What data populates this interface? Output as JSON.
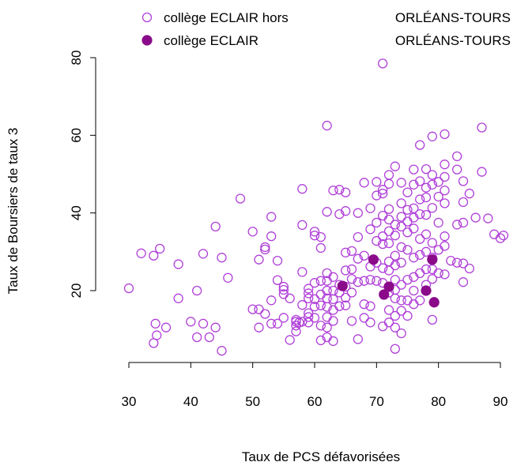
{
  "chart_data": {
    "type": "scatter",
    "title": "",
    "xlabel": "Taux de PCS défavorisées",
    "ylabel": "Taux de Boursiers de taux 3",
    "xlim": [
      28,
      92
    ],
    "ylim": [
      2,
      82
    ],
    "xticks": [
      30,
      40,
      50,
      60,
      70,
      80,
      90
    ],
    "yticks": [
      20,
      40,
      60,
      80
    ],
    "grid": false,
    "legend_position": "top",
    "legend": [
      {
        "series_index": 0,
        "label_left": "collège ECLAIR hors",
        "label_right": "ORLÉANS-TOURS"
      },
      {
        "series_index": 1,
        "label_left": "collège ECLAIR",
        "label_right": "ORLÉANS-TOURS"
      }
    ],
    "series": [
      {
        "name": "collège ECLAIR hors ORLÉANS-TOURS",
        "marker": "open-circle",
        "color": "#b040d8",
        "points": [
          [
            30,
            20.6
          ],
          [
            32,
            29.6
          ],
          [
            34,
            29
          ],
          [
            35,
            30.8
          ],
          [
            36,
            10.5
          ],
          [
            34,
            6.5
          ],
          [
            34.5,
            8.5
          ],
          [
            34.3,
            11.5
          ],
          [
            38,
            18
          ],
          [
            38,
            26.8
          ],
          [
            40,
            12
          ],
          [
            41,
            20
          ],
          [
            41,
            8
          ],
          [
            42,
            29.5
          ],
          [
            42,
            11.5
          ],
          [
            43,
            8
          ],
          [
            44,
            36.5
          ],
          [
            45,
            28.5
          ],
          [
            44,
            10.5
          ],
          [
            45,
            4.5
          ],
          [
            46,
            23.3
          ],
          [
            48,
            43.7
          ],
          [
            50,
            35.2
          ],
          [
            50,
            15.2
          ],
          [
            51,
            10.5
          ],
          [
            51,
            15.2
          ],
          [
            51,
            28
          ],
          [
            52,
            31.2
          ],
          [
            52,
            30.6
          ],
          [
            52,
            14
          ],
          [
            53,
            34
          ],
          [
            53,
            39
          ],
          [
            53,
            11.5
          ],
          [
            53,
            17.5
          ],
          [
            54,
            22.7
          ],
          [
            54,
            27.7
          ],
          [
            54,
            11.5
          ],
          [
            55,
            20.2
          ],
          [
            55,
            21
          ],
          [
            55,
            19.1
          ],
          [
            55,
            13
          ],
          [
            56,
            18
          ],
          [
            56,
            7.3
          ],
          [
            57,
            11
          ],
          [
            57,
            12
          ],
          [
            57,
            12.5
          ],
          [
            57,
            9.5
          ],
          [
            57.5,
            11.8
          ],
          [
            58,
            16.3
          ],
          [
            58,
            36.9
          ],
          [
            58,
            46.2
          ],
          [
            58,
            24.8
          ],
          [
            58,
            12
          ],
          [
            59,
            11.8
          ],
          [
            59,
            19.3
          ],
          [
            59,
            20.5
          ],
          [
            59,
            18
          ],
          [
            59,
            14.2
          ],
          [
            59,
            13.2
          ],
          [
            60,
            35.2
          ],
          [
            60,
            34.2
          ],
          [
            60,
            22
          ],
          [
            60,
            17.8
          ],
          [
            60,
            15.9
          ],
          [
            60,
            13
          ],
          [
            61,
            33.8
          ],
          [
            61,
            31
          ],
          [
            61,
            22.5
          ],
          [
            61,
            19
          ],
          [
            61,
            16.2
          ],
          [
            61,
            11
          ],
          [
            61,
            7.2
          ],
          [
            62,
            62.5
          ],
          [
            62,
            40.3
          ],
          [
            62,
            24.5
          ],
          [
            62,
            22.5
          ],
          [
            62,
            20
          ],
          [
            62,
            18
          ],
          [
            62,
            15.8
          ],
          [
            62,
            13.2
          ],
          [
            62,
            10.5
          ],
          [
            62,
            8
          ],
          [
            63,
            45.8
          ],
          [
            63,
            23.5
          ],
          [
            63,
            20
          ],
          [
            63,
            17.8
          ],
          [
            63,
            15
          ],
          [
            63,
            12.2
          ],
          [
            63,
            7
          ],
          [
            64,
            46
          ],
          [
            64,
            39.7
          ],
          [
            64,
            21.5
          ],
          [
            64,
            19.5
          ],
          [
            64,
            16
          ],
          [
            65,
            45.3
          ],
          [
            65,
            40.5
          ],
          [
            65,
            29.8
          ],
          [
            65,
            25.2
          ],
          [
            65,
            21
          ],
          [
            65,
            18.2
          ],
          [
            65,
            16.2
          ],
          [
            66,
            30.2
          ],
          [
            66,
            25.5
          ],
          [
            66,
            23
          ],
          [
            66,
            19.5
          ],
          [
            66,
            12.2
          ],
          [
            67,
            40
          ],
          [
            67,
            33.8
          ],
          [
            67,
            28.2
          ],
          [
            67,
            22.2
          ],
          [
            67,
            7.5
          ],
          [
            68,
            47.8
          ],
          [
            68,
            29
          ],
          [
            68,
            22.5
          ],
          [
            68,
            16.5
          ],
          [
            68,
            13
          ],
          [
            69,
            41.2
          ],
          [
            69,
            35.8
          ],
          [
            69,
            26.2
          ],
          [
            69,
            22.8
          ],
          [
            69,
            16
          ],
          [
            69,
            11.8
          ],
          [
            70,
            48
          ],
          [
            70,
            44.5
          ],
          [
            70,
            37.5
          ],
          [
            70,
            32.8
          ],
          [
            70,
            27.2
          ],
          [
            70,
            22.5
          ],
          [
            71,
            78.5
          ],
          [
            71,
            46
          ],
          [
            71,
            45
          ],
          [
            71,
            39.3
          ],
          [
            71,
            34
          ],
          [
            71,
            32
          ],
          [
            71,
            25.8
          ],
          [
            71,
            22
          ],
          [
            71,
            10.8
          ],
          [
            72,
            49.8
          ],
          [
            72,
            47.5
          ],
          [
            72,
            41
          ],
          [
            72,
            38.3
          ],
          [
            72,
            35.3
          ],
          [
            72,
            32.2
          ],
          [
            72,
            27.5
          ],
          [
            72,
            25.2
          ],
          [
            72,
            19.5
          ],
          [
            72,
            15
          ],
          [
            72,
            11.8
          ],
          [
            73,
            52
          ],
          [
            73,
            37
          ],
          [
            73,
            34.2
          ],
          [
            73,
            29
          ],
          [
            73,
            26.5
          ],
          [
            73,
            22.8
          ],
          [
            73,
            20.2
          ],
          [
            73,
            18
          ],
          [
            73,
            13.5
          ],
          [
            73,
            10.5
          ],
          [
            73,
            5
          ],
          [
            74,
            47.8
          ],
          [
            74,
            42.5
          ],
          [
            74,
            39
          ],
          [
            74,
            36.5
          ],
          [
            74,
            31.2
          ],
          [
            74,
            27.2
          ],
          [
            74,
            21.5
          ],
          [
            74,
            17.5
          ],
          [
            74,
            14.8
          ],
          [
            74,
            9
          ],
          [
            75,
            45.3
          ],
          [
            75,
            40.8
          ],
          [
            75,
            37.8
          ],
          [
            75,
            35
          ],
          [
            75,
            30.5
          ],
          [
            75,
            22.8
          ],
          [
            75,
            17.5
          ],
          [
            75,
            13.5
          ],
          [
            76,
            51.2
          ],
          [
            76,
            47.3
          ],
          [
            76,
            41.2
          ],
          [
            76,
            38.8
          ],
          [
            76,
            36
          ],
          [
            76,
            28.5
          ],
          [
            76,
            23.5
          ],
          [
            76,
            20
          ],
          [
            76,
            16.5
          ],
          [
            77,
            57.5
          ],
          [
            77,
            48.2
          ],
          [
            77,
            43.5
          ],
          [
            77,
            39.7
          ],
          [
            77,
            33.3
          ],
          [
            77,
            29.2
          ],
          [
            77,
            24.5
          ],
          [
            77,
            17.5
          ],
          [
            78,
            51.3
          ],
          [
            78,
            46.5
          ],
          [
            78,
            44
          ],
          [
            78,
            39.5
          ],
          [
            78,
            34.5
          ],
          [
            78,
            30
          ],
          [
            78,
            25.5
          ],
          [
            78,
            21.5
          ],
          [
            79,
            59.7
          ],
          [
            79,
            49.8
          ],
          [
            79,
            47.3
          ],
          [
            79,
            41.3
          ],
          [
            79,
            32.3
          ],
          [
            79,
            28.5
          ],
          [
            79,
            25.5
          ],
          [
            79,
            23
          ],
          [
            79,
            12.5
          ],
          [
            80,
            48
          ],
          [
            80,
            44.2
          ],
          [
            80,
            37.5
          ],
          [
            80,
            30.5
          ],
          [
            80,
            24.5
          ],
          [
            81,
            60.3
          ],
          [
            81,
            52.5
          ],
          [
            81,
            49.3
          ],
          [
            81,
            45.8
          ],
          [
            81,
            42.5
          ],
          [
            81,
            34
          ],
          [
            81,
            31.5
          ],
          [
            81,
            24.2
          ],
          [
            82,
            27.7
          ],
          [
            83,
            54.6
          ],
          [
            83,
            51.2
          ],
          [
            83,
            37
          ],
          [
            83,
            27.2
          ],
          [
            84,
            48.2
          ],
          [
            84,
            42.8
          ],
          [
            84,
            37.5
          ],
          [
            84,
            22.2
          ],
          [
            84,
            27
          ],
          [
            85,
            45
          ],
          [
            85,
            25.7
          ],
          [
            86,
            38.8
          ],
          [
            87,
            62
          ],
          [
            87,
            50.6
          ],
          [
            88,
            38.6
          ],
          [
            89,
            34.5
          ],
          [
            90,
            33.5
          ],
          [
            90.5,
            34.2
          ]
        ]
      },
      {
        "name": "collège ECLAIR ORLÉANS-TOURS",
        "marker": "filled-circle",
        "color": "#8a0a8a",
        "points": [
          [
            64.5,
            21.2
          ],
          [
            69.5,
            28
          ],
          [
            71.2,
            19
          ],
          [
            72,
            21
          ],
          [
            78,
            20
          ],
          [
            79,
            28
          ],
          [
            79.3,
            17
          ]
        ]
      }
    ]
  }
}
